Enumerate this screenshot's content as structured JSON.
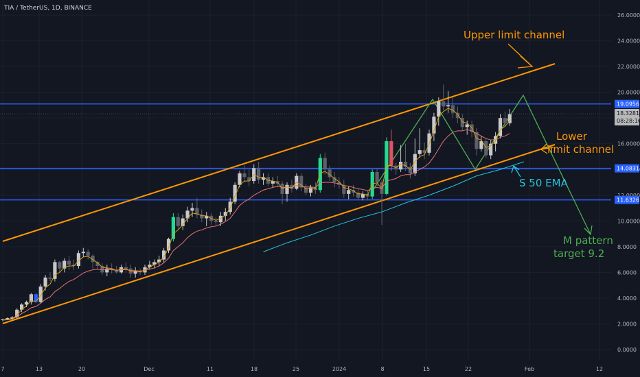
{
  "chart_data": {
    "type": "candlestick",
    "title": "TIA / TetherUS, 1D, BINANCE",
    "y_axis": {
      "side": "right",
      "range": [
        0,
        26.5
      ],
      "ticks": [
        "0.0000",
        "2.0000",
        "4.0000",
        "6.0000",
        "8.0000",
        "10.0000",
        "12.0000",
        "14.0000",
        "16.0000",
        "18.0000",
        "20.0000",
        "22.0000",
        "24.0000",
        "26.0000"
      ]
    },
    "x_axis": {
      "tick_labels": [
        "7",
        "13",
        "20",
        "Dec",
        "11",
        "18",
        "25",
        "2024",
        "8",
        "15",
        "22",
        "Feb",
        "12"
      ]
    },
    "price_levels": [
      {
        "label": "19.0956",
        "value": 19.0956,
        "color": "#2962ff"
      },
      {
        "label": "14.0831",
        "value": 14.0831,
        "color": "#2962ff"
      },
      {
        "label": "11.6326",
        "value": 11.6326,
        "color": "#2962ff"
      }
    ],
    "last_price": {
      "label": "18.3281",
      "countdown": "08:28:16",
      "value": 18.3281
    },
    "series": [
      {
        "name": "",
        "kind": "candlestick",
        "candles": [
          [
            2.3,
            2.4,
            2.2,
            2.35
          ],
          [
            2.35,
            2.5,
            2.3,
            2.45
          ],
          [
            2.4,
            2.6,
            2.35,
            2.5
          ],
          [
            2.5,
            3.2,
            2.4,
            3.1
          ],
          [
            3.1,
            3.6,
            2.9,
            3.5
          ],
          [
            3.5,
            3.8,
            3.3,
            3.7
          ],
          [
            3.7,
            4.4,
            3.5,
            4.3
          ],
          [
            4.3,
            4.4,
            3.6,
            3.7
          ],
          [
            3.7,
            5.1,
            3.6,
            4.9
          ],
          [
            4.9,
            5.8,
            4.6,
            5.6
          ],
          [
            5.6,
            6.0,
            5.3,
            5.5
          ],
          [
            5.5,
            7.0,
            5.3,
            6.8
          ],
          [
            6.8,
            6.9,
            6.0,
            6.3
          ],
          [
            6.3,
            7.1,
            6.0,
            6.9
          ],
          [
            6.9,
            7.3,
            6.2,
            6.6
          ],
          [
            6.6,
            7.0,
            6.2,
            6.5
          ],
          [
            6.5,
            7.7,
            6.3,
            7.5
          ],
          [
            7.5,
            7.9,
            7.2,
            7.6
          ],
          [
            7.6,
            7.8,
            7.0,
            7.3
          ],
          [
            7.3,
            7.4,
            6.3,
            6.8
          ],
          [
            6.8,
            6.9,
            6.2,
            6.5
          ],
          [
            6.5,
            6.7,
            5.8,
            6.0
          ],
          [
            6.0,
            6.6,
            5.7,
            6.3
          ],
          [
            6.3,
            6.7,
            5.9,
            6.2
          ],
          [
            6.2,
            6.5,
            5.9,
            6.0
          ],
          [
            6.0,
            6.6,
            5.9,
            6.4
          ],
          [
            6.4,
            6.8,
            6.0,
            6.3
          ],
          [
            6.3,
            6.6,
            5.6,
            5.9
          ],
          [
            5.9,
            6.4,
            5.6,
            6.1
          ],
          [
            6.1,
            6.3,
            5.8,
            6.0
          ],
          [
            6.0,
            6.6,
            5.8,
            6.4
          ],
          [
            6.4,
            6.9,
            6.2,
            6.6
          ],
          [
            6.6,
            7.0,
            6.3,
            6.8
          ],
          [
            6.8,
            7.3,
            6.5,
            7.0
          ],
          [
            7.0,
            7.9,
            6.8,
            7.7
          ],
          [
            7.7,
            8.7,
            7.5,
            8.6
          ],
          [
            8.6,
            10.6,
            8.4,
            10.3
          ],
          [
            10.3,
            10.6,
            9.3,
            9.6
          ],
          [
            9.6,
            10.5,
            9.3,
            10.2
          ],
          [
            10.2,
            11.1,
            9.9,
            10.8
          ],
          [
            10.8,
            11.4,
            10.3,
            11.0
          ],
          [
            11.0,
            11.8,
            10.2,
            10.5
          ],
          [
            10.5,
            10.9,
            9.9,
            10.2
          ],
          [
            10.2,
            10.7,
            9.6,
            10.4
          ],
          [
            10.4,
            10.6,
            9.7,
            10.0
          ],
          [
            10.0,
            10.3,
            9.6,
            9.9
          ],
          [
            9.9,
            10.7,
            9.6,
            10.4
          ],
          [
            10.4,
            11.0,
            10.0,
            10.7
          ],
          [
            10.7,
            11.8,
            10.5,
            11.5
          ],
          [
            11.5,
            13.0,
            11.3,
            12.8
          ],
          [
            12.8,
            13.9,
            12.6,
            13.7
          ],
          [
            13.7,
            14.3,
            13.0,
            13.4
          ],
          [
            13.4,
            14.0,
            12.7,
            13.1
          ],
          [
            13.1,
            14.4,
            12.9,
            14.1
          ],
          [
            14.1,
            14.6,
            12.9,
            13.2
          ],
          [
            13.2,
            13.7,
            12.8,
            13.4
          ],
          [
            13.4,
            13.7,
            12.7,
            12.9
          ],
          [
            12.9,
            13.4,
            12.6,
            13.1
          ],
          [
            13.1,
            13.5,
            12.6,
            12.9
          ],
          [
            12.9,
            13.1,
            11.3,
            12.1
          ],
          [
            12.1,
            13.0,
            11.5,
            12.8
          ],
          [
            12.8,
            13.2,
            12.2,
            12.5
          ],
          [
            12.5,
            13.7,
            12.4,
            13.5
          ],
          [
            13.5,
            13.7,
            12.3,
            12.6
          ],
          [
            12.6,
            12.9,
            12.0,
            12.2
          ],
          [
            12.2,
            12.8,
            11.9,
            12.6
          ],
          [
            12.6,
            13.0,
            12.1,
            12.4
          ],
          [
            12.4,
            15.2,
            12.2,
            14.9
          ],
          [
            14.9,
            15.3,
            13.6,
            14.0
          ],
          [
            14.0,
            14.3,
            13.1,
            13.4
          ],
          [
            13.4,
            13.8,
            12.6,
            13.0
          ],
          [
            13.0,
            13.4,
            12.5,
            12.8
          ],
          [
            12.8,
            13.2,
            11.8,
            12.1
          ],
          [
            12.1,
            12.7,
            11.7,
            12.4
          ],
          [
            12.4,
            12.8,
            11.9,
            12.2
          ],
          [
            12.2,
            12.5,
            11.6,
            11.8
          ],
          [
            11.8,
            12.3,
            11.6,
            12.1
          ],
          [
            12.1,
            12.4,
            11.6,
            11.9
          ],
          [
            11.9,
            14.0,
            11.7,
            13.8
          ],
          [
            13.8,
            14.1,
            12.7,
            13.0
          ],
          [
            13.0,
            13.2,
            9.7,
            12.1
          ],
          [
            12.1,
            16.5,
            12.0,
            16.2
          ],
          [
            16.2,
            17.1,
            13.9,
            14.3
          ],
          [
            14.3,
            14.5,
            13.6,
            14.0
          ],
          [
            14.0,
            15.9,
            13.8,
            14.6
          ],
          [
            14.6,
            16.0,
            13.9,
            14.2
          ],
          [
            14.2,
            14.5,
            13.3,
            13.7
          ],
          [
            13.7,
            16.4,
            13.5,
            15.2
          ],
          [
            15.2,
            17.2,
            14.9,
            15.5
          ],
          [
            15.5,
            16.1,
            14.8,
            15.3
          ],
          [
            15.3,
            17.1,
            15.1,
            16.8
          ],
          [
            16.8,
            18.4,
            16.2,
            18.1
          ],
          [
            18.1,
            19.6,
            17.4,
            19.3
          ],
          [
            19.3,
            20.6,
            18.6,
            18.9
          ],
          [
            18.9,
            20.1,
            18.4,
            19.0
          ],
          [
            19.0,
            19.6,
            18.0,
            18.4
          ],
          [
            18.4,
            18.9,
            17.6,
            18.0
          ],
          [
            18.0,
            18.3,
            17.0,
            17.3
          ],
          [
            17.3,
            17.8,
            16.7,
            17.5
          ],
          [
            17.5,
            17.8,
            16.5,
            16.9
          ],
          [
            16.9,
            17.2,
            15.1,
            15.6
          ],
          [
            15.6,
            16.6,
            15.4,
            16.2
          ],
          [
            16.2,
            16.4,
            14.9,
            15.1
          ],
          [
            15.1,
            16.3,
            14.8,
            16.0
          ],
          [
            16.0,
            16.9,
            15.4,
            16.6
          ],
          [
            16.6,
            18.3,
            16.4,
            18.0
          ],
          [
            18.0,
            18.5,
            17.3,
            17.6
          ],
          [
            17.6,
            18.7,
            17.4,
            18.3
          ]
        ]
      },
      {
        "name": "",
        "kind": "line",
        "color": "#e57373",
        "values": [
          2.3,
          2.33,
          2.38,
          2.55,
          2.8,
          3.0,
          3.25,
          3.35,
          3.6,
          3.9,
          4.1,
          4.5,
          4.75,
          5.05,
          5.3,
          5.45,
          5.7,
          5.95,
          6.1,
          6.2,
          6.25,
          6.2,
          6.22,
          6.2,
          6.17,
          6.2,
          6.22,
          6.15,
          6.14,
          6.1,
          6.15,
          6.25,
          6.35,
          6.5,
          6.75,
          7.1,
          7.7,
          8.0,
          8.3,
          8.7,
          9.0,
          9.2,
          9.3,
          9.45,
          9.55,
          9.6,
          9.75,
          9.95,
          10.2,
          10.7,
          11.2,
          11.5,
          11.7,
          12.0,
          12.2,
          12.4,
          12.5,
          12.6,
          12.7,
          12.6,
          12.65,
          12.6,
          12.75,
          12.7,
          12.65,
          12.65,
          12.6,
          12.95,
          13.0,
          13.0,
          12.95,
          12.9,
          12.75,
          12.7,
          12.6,
          12.5,
          12.45,
          12.35,
          12.55,
          12.6,
          12.55,
          13.1,
          13.2,
          13.3,
          13.5,
          13.6,
          13.6,
          13.8,
          14.0,
          14.2,
          14.5,
          15.0,
          15.6,
          16.2,
          16.6,
          16.9,
          17.0,
          17.0,
          17.1,
          17.0,
          16.8,
          16.6,
          16.4,
          16.3,
          16.3,
          16.5,
          16.6,
          16.8
        ]
      },
      {
        "name": "",
        "kind": "line",
        "color": "#d4a017",
        "values": [
          2.3,
          2.32,
          2.36,
          2.7,
          3.1,
          3.4,
          3.8,
          3.75,
          4.2,
          4.8,
          5.1,
          5.8,
          6.0,
          6.4,
          6.5,
          6.5,
          6.9,
          7.2,
          7.25,
          7.0,
          6.75,
          6.4,
          6.35,
          6.3,
          6.15,
          6.25,
          6.28,
          6.1,
          6.1,
          6.05,
          6.2,
          6.4,
          6.6,
          6.8,
          7.2,
          7.9,
          9.0,
          9.3,
          9.7,
          10.2,
          10.6,
          10.55,
          10.4,
          10.4,
          10.2,
          10.05,
          10.2,
          10.45,
          11.0,
          11.9,
          12.8,
          13.1,
          13.1,
          13.6,
          13.4,
          13.4,
          13.15,
          13.1,
          13.0,
          12.5,
          12.65,
          12.55,
          13.0,
          12.8,
          12.5,
          12.55,
          12.5,
          13.7,
          13.85,
          13.6,
          13.3,
          13.05,
          12.6,
          12.5,
          12.35,
          12.1,
          12.1,
          12.0,
          12.9,
          12.95,
          12.5,
          14.3,
          14.3,
          14.15,
          14.4,
          14.3,
          14.0,
          14.6,
          15.0,
          15.15,
          16.0,
          17.0,
          18.1,
          18.5,
          18.75,
          18.6,
          18.3,
          17.7,
          17.6,
          17.25,
          16.4,
          16.3,
          15.7,
          15.85,
          16.2,
          17.1,
          17.35,
          17.8
        ]
      },
      {
        "name": "",
        "kind": "line",
        "color": "#26c6da",
        "points": [
          [
            55,
            7.6
          ],
          [
            60,
            8.3
          ],
          [
            65,
            8.9
          ],
          [
            70,
            9.6
          ],
          [
            75,
            10.2
          ],
          [
            80,
            10.7
          ],
          [
            85,
            11.4
          ],
          [
            90,
            12.0
          ],
          [
            95,
            12.7
          ],
          [
            100,
            13.5
          ],
          [
            105,
            14.0
          ],
          [
            110,
            14.6
          ]
        ]
      }
    ],
    "annotations": [
      {
        "text": "Upper limit channel",
        "color": "#ff9800"
      },
      {
        "text": "Lower",
        "color": "#ff9800"
      },
      {
        "text": "limit channel",
        "color": "#ff9800"
      },
      {
        "text": "S 50 EMA",
        "color": "#26c6da"
      },
      {
        "text": "M pattern",
        "color": "#4caf50"
      },
      {
        "text": "target 9.2",
        "color": "#4caf50"
      }
    ]
  }
}
